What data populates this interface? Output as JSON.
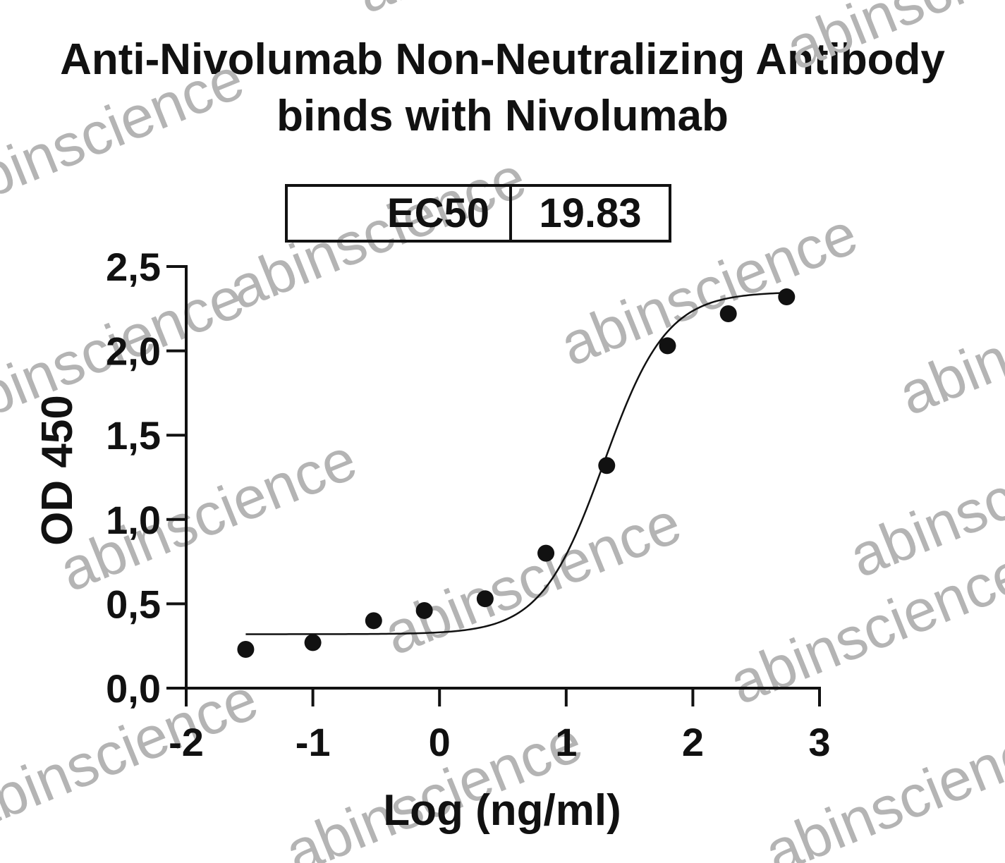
{
  "title_lines": [
    "Anti-Nivolumab Non-Neutralizing Antibody",
    "binds with Nivolumab"
  ],
  "ec50": {
    "label": "EC50",
    "value": "19.83"
  },
  "watermark_text": "abinscience",
  "colors": {
    "ink": "#111111",
    "watermark": "#b4b4b4",
    "background": "#ffffff"
  },
  "chart_data": {
    "type": "scatter",
    "xlabel": "Log (ng/ml)",
    "ylabel": "OD 450",
    "xlim": [
      -2,
      3
    ],
    "ylim": [
      0,
      2.5
    ],
    "x_ticks": [
      -2,
      -1,
      0,
      1,
      2,
      3
    ],
    "x_tick_labels": [
      "-2",
      "-1",
      "0",
      "1",
      "2",
      "3"
    ],
    "y_ticks": [
      0,
      0.5,
      1.0,
      1.5,
      2.0,
      2.5
    ],
    "y_tick_labels": [
      "0,0",
      "0,5",
      "1,0",
      "1,5",
      "2,0",
      "2,5"
    ],
    "grid": false,
    "legend": "none",
    "series": [
      {
        "x": [
          -1.53,
          -1.0,
          -0.52,
          -0.12,
          0.36,
          0.84,
          1.32,
          1.8,
          2.28,
          2.74
        ],
        "y": [
          0.23,
          0.27,
          0.4,
          0.46,
          0.53,
          0.8,
          1.32,
          2.03,
          2.22,
          2.32
        ],
        "fit": "four-parameter logistic",
        "fit_params": {
          "bottom": 0.32,
          "top": 2.35,
          "log_ec50": 1.297,
          "hill": 1.75
        },
        "fit_x_range": [
          -1.53,
          2.74
        ]
      }
    ]
  }
}
